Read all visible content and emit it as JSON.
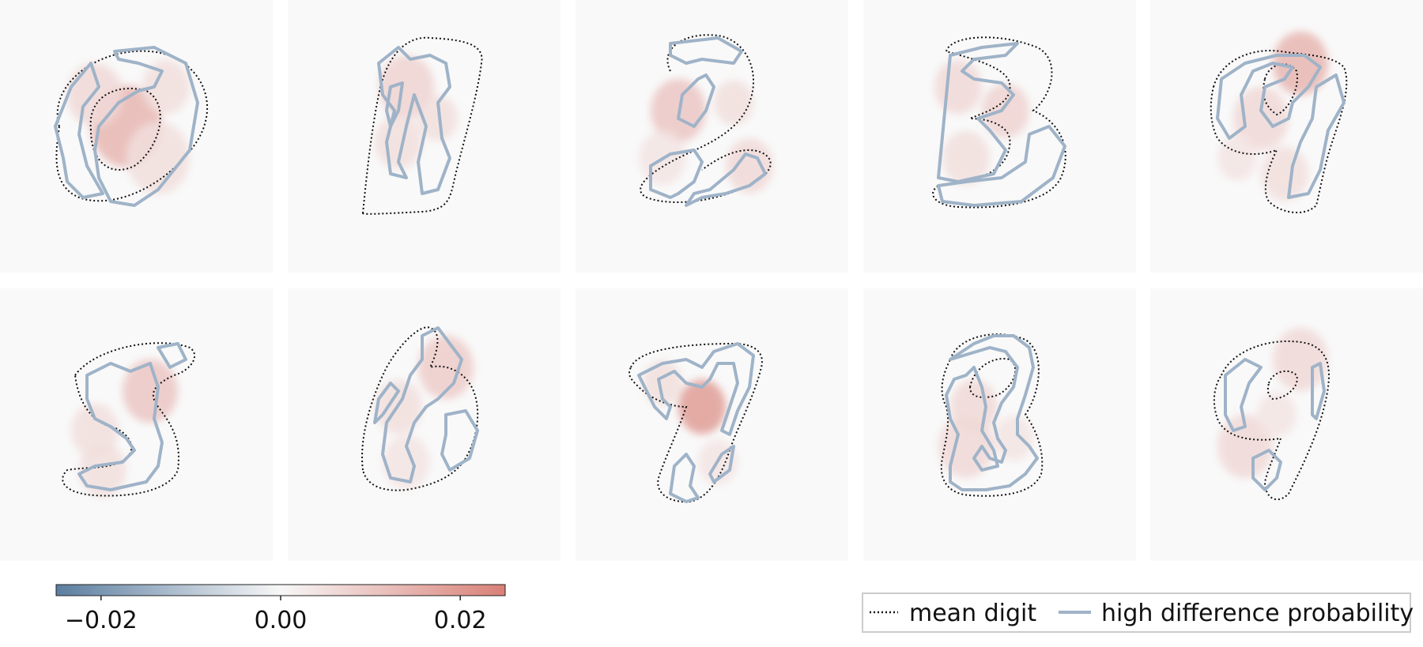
{
  "chart_data": {
    "type": "heatmap",
    "title": "",
    "panels": [
      {
        "digit": "0"
      },
      {
        "digit": "1"
      },
      {
        "digit": "2"
      },
      {
        "digit": "3"
      },
      {
        "digit": "4"
      },
      {
        "digit": "5"
      },
      {
        "digit": "6"
      },
      {
        "digit": "7"
      },
      {
        "digit": "8"
      },
      {
        "digit": "9"
      }
    ],
    "colorbar": {
      "range": [
        -0.025,
        0.025
      ],
      "ticks": [
        -0.02,
        0.0,
        0.02
      ],
      "tick_labels": [
        "−0.02",
        "0.00",
        "0.02"
      ],
      "cmap_low": "#5b7ea0",
      "cmap_mid": "#f7f7f7",
      "cmap_high": "#d98077"
    },
    "legend": {
      "position": "bottom-right",
      "entries": [
        {
          "label": "mean digit",
          "style": "dotted",
          "color": "#111111"
        },
        {
          "label": "high difference probability",
          "style": "solid",
          "color": "#9fb3c8"
        }
      ]
    }
  }
}
